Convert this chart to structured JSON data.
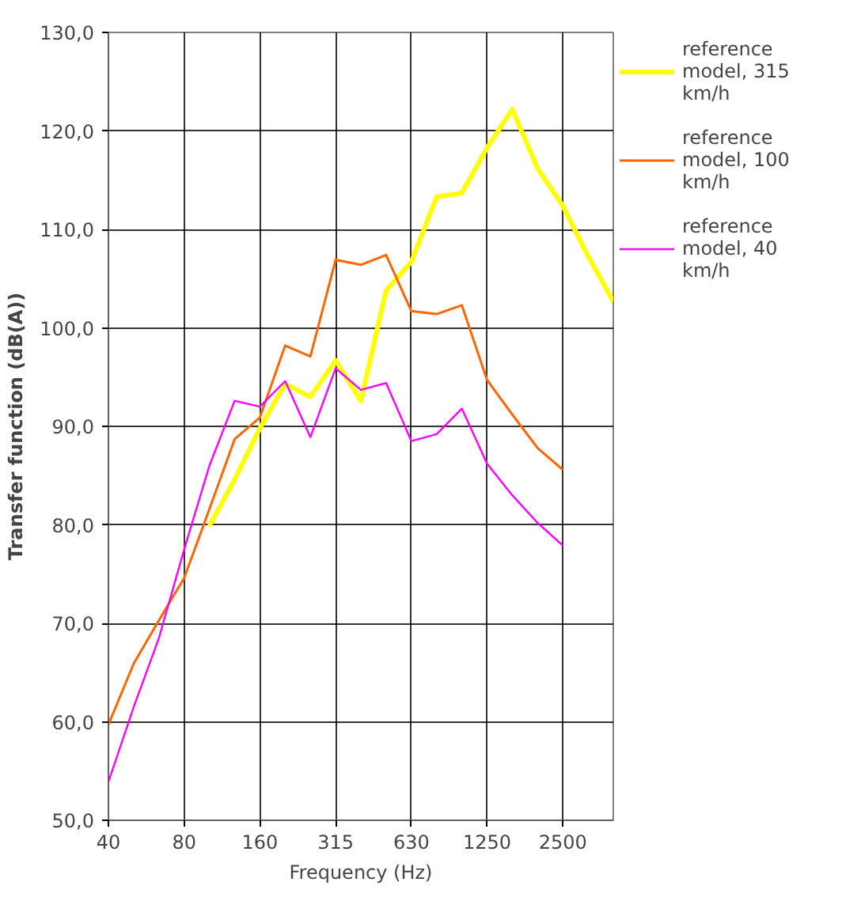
{
  "chart_data": {
    "type": "line",
    "xlabel": "Frequency (Hz)",
    "ylabel": "Transfer function (dB(A))",
    "categories": [
      "40",
      null,
      null,
      "80",
      null,
      null,
      "160",
      null,
      null,
      "315",
      null,
      null,
      "630",
      null,
      null,
      "1250",
      null,
      null,
      "2500",
      null,
      null
    ],
    "series": [
      {
        "name": "reference model, 315 km/h",
        "color": "#ffff00",
        "values": [
          null,
          null,
          null,
          null,
          79.9,
          84.6,
          89.8,
          94.3,
          93.0,
          96.7,
          92.6,
          103.8,
          106.7,
          113.3,
          113.7,
          118.3,
          122.2,
          116.2,
          112.4,
          107.3,
          102.7
        ]
      },
      {
        "name": "reference model, 100 km/h",
        "color": "#ff6600",
        "values": [
          59.7,
          65.9,
          70.3,
          74.6,
          81.6,
          88.7,
          90.9,
          98.2,
          97.1,
          106.9,
          106.4,
          107.4,
          101.7,
          101.4,
          102.3,
          94.7,
          91.2,
          87.8,
          85.6,
          null,
          null
        ]
      },
      {
        "name": "reference model, 40 km/h",
        "color": "#ff00ff",
        "values": [
          53.9,
          61.5,
          68.5,
          77.5,
          86.0,
          92.6,
          92.0,
          94.6,
          88.9,
          95.9,
          93.7,
          94.4,
          88.5,
          89.2,
          91.8,
          86.2,
          83.0,
          80.2,
          77.9,
          null,
          null
        ]
      }
    ],
    "ylim": [
      50,
      130
    ],
    "yticks": [
      {
        "value": 50,
        "label": "50,0"
      },
      {
        "value": 60,
        "label": "60,0"
      },
      {
        "value": 70,
        "label": "70,0"
      },
      {
        "value": 80,
        "label": "80,0"
      },
      {
        "value": 90,
        "label": "90,0"
      },
      {
        "value": 100,
        "label": "100,0"
      },
      {
        "value": 110,
        "label": "110,0"
      },
      {
        "value": 120,
        "label": "120,0"
      },
      {
        "value": 130,
        "label": "130,0"
      }
    ],
    "grid": true,
    "legend": "right"
  }
}
